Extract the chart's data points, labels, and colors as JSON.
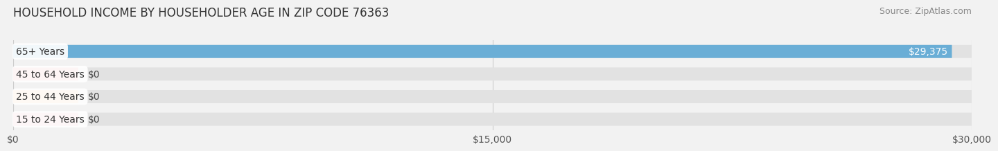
{
  "title": "HOUSEHOLD INCOME BY HOUSEHOLDER AGE IN ZIP CODE 76363",
  "source": "Source: ZipAtlas.com",
  "categories": [
    "15 to 24 Years",
    "25 to 44 Years",
    "45 to 64 Years",
    "65+ Years"
  ],
  "values": [
    0,
    0,
    0,
    29375
  ],
  "bar_colors": [
    "#f0919e",
    "#f5bc84",
    "#f09090",
    "#6aaed6"
  ],
  "value_labels": [
    "$0",
    "$0",
    "$0",
    "$29,375"
  ],
  "xlim": [
    0,
    30000
  ],
  "xticks": [
    0,
    15000,
    30000
  ],
  "xticklabels": [
    "$0",
    "$15,000",
    "$30,000"
  ],
  "bg_color": "#f2f2f2",
  "bar_bg_color": "#e2e2e2",
  "title_fontsize": 12,
  "source_fontsize": 9,
  "tick_fontsize": 10,
  "label_fontsize": 10,
  "value_fontsize": 10
}
